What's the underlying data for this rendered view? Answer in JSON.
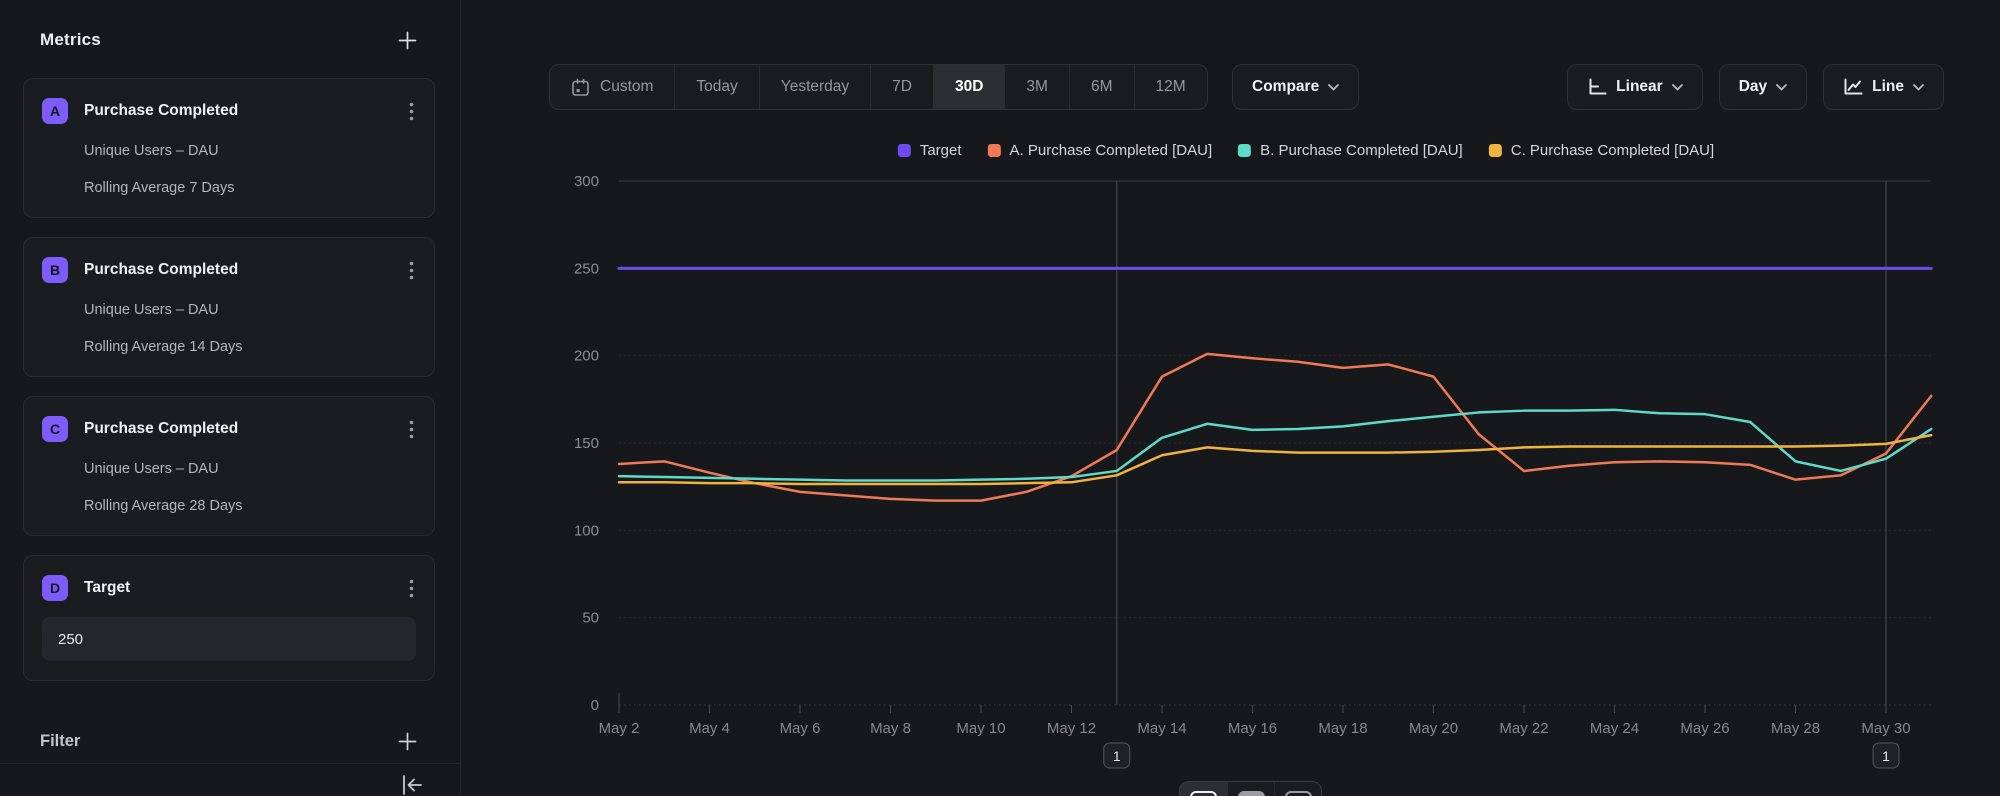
{
  "sidebar": {
    "title": "Metrics",
    "filter_label": "Filter",
    "cards": [
      {
        "badge": "A",
        "title": "Purchase Completed",
        "line1": "Unique Users – DAU",
        "line2": "Rolling Average 7 Days"
      },
      {
        "badge": "B",
        "title": "Purchase Completed",
        "line1": "Unique Users – DAU",
        "line2": "Rolling Average 14 Days"
      },
      {
        "badge": "C",
        "title": "Purchase Completed",
        "line1": "Unique Users – DAU",
        "line2": "Rolling Average 28 Days"
      },
      {
        "badge": "D",
        "title": "Target",
        "input_value": "250"
      }
    ]
  },
  "toolbar": {
    "range_options": [
      {
        "label": "Custom"
      },
      {
        "label": "Today"
      },
      {
        "label": "Yesterday"
      },
      {
        "label": "7D"
      },
      {
        "label": "30D",
        "active": true
      },
      {
        "label": "3M"
      },
      {
        "label": "6M"
      },
      {
        "label": "12M"
      }
    ],
    "compare_label": "Compare",
    "scale_label": "Linear",
    "granularity_label": "Day",
    "chart_type_label": "Line"
  },
  "chart_data": {
    "type": "line",
    "title": "",
    "xlabel": "",
    "ylabel": "",
    "ylim": [
      0,
      300
    ],
    "yticks": [
      0,
      50,
      100,
      150,
      200,
      250,
      300
    ],
    "grid": "horizontal-dotted",
    "legend_position": "top-center",
    "x": [
      "May 2",
      "May 3",
      "May 4",
      "May 5",
      "May 6",
      "May 7",
      "May 8",
      "May 9",
      "May 10",
      "May 11",
      "May 12",
      "May 13",
      "May 14",
      "May 15",
      "May 16",
      "May 17",
      "May 18",
      "May 19",
      "May 20",
      "May 21",
      "May 22",
      "May 23",
      "May 24",
      "May 25",
      "May 26",
      "May 27",
      "May 28",
      "May 29",
      "May 30",
      "May 31"
    ],
    "x_tick_labels": [
      "May 2",
      "May 4",
      "May 6",
      "May 8",
      "May 10",
      "May 12",
      "May 14",
      "May 16",
      "May 18",
      "May 20",
      "May 22",
      "May 24",
      "May 26",
      "May 28",
      "May 30"
    ],
    "series": [
      {
        "name": "Target",
        "color": "#6b4cf0",
        "values": [
          250,
          250,
          250,
          250,
          250,
          250,
          250,
          250,
          250,
          250,
          250,
          250,
          250,
          250,
          250,
          250,
          250,
          250,
          250,
          250,
          250,
          250,
          250,
          250,
          250,
          250,
          250,
          250,
          250,
          250
        ]
      },
      {
        "name": "A. Purchase Completed [DAU]",
        "color": "#ef7a55",
        "values": [
          138,
          139.5,
          133,
          127,
          122,
          120,
          118,
          117,
          117,
          122,
          131,
          146,
          188,
          201,
          198.5,
          196.5,
          193,
          195,
          188,
          155,
          134,
          137,
          139,
          139.5,
          139,
          137.5,
          129,
          131.5,
          144,
          177
        ]
      },
      {
        "name": "B. Purchase Completed [DAU]",
        "color": "#5edac8",
        "values": [
          131,
          130.5,
          130,
          129.5,
          129,
          128.5,
          128.5,
          128.5,
          129,
          129.5,
          130.5,
          134,
          153,
          161,
          157.5,
          158,
          159.5,
          162.5,
          165,
          167.5,
          168.5,
          168.5,
          169,
          167,
          166.5,
          162,
          139.5,
          134,
          141,
          158
        ]
      },
      {
        "name": "C. Purchase Completed [DAU]",
        "color": "#f1b33f",
        "values": [
          127.5,
          127.5,
          127,
          127,
          126.5,
          126.5,
          126.5,
          126.5,
          126.5,
          127,
          127.5,
          131.5,
          143,
          147.5,
          145.5,
          144.5,
          144.5,
          144.5,
          145,
          146,
          147.5,
          148,
          148,
          148,
          148,
          148,
          148,
          148.5,
          149.5,
          154.5
        ]
      }
    ],
    "annotations": [
      {
        "x": "May 13",
        "label": "1"
      },
      {
        "x": "May 30",
        "label": "1"
      }
    ]
  }
}
